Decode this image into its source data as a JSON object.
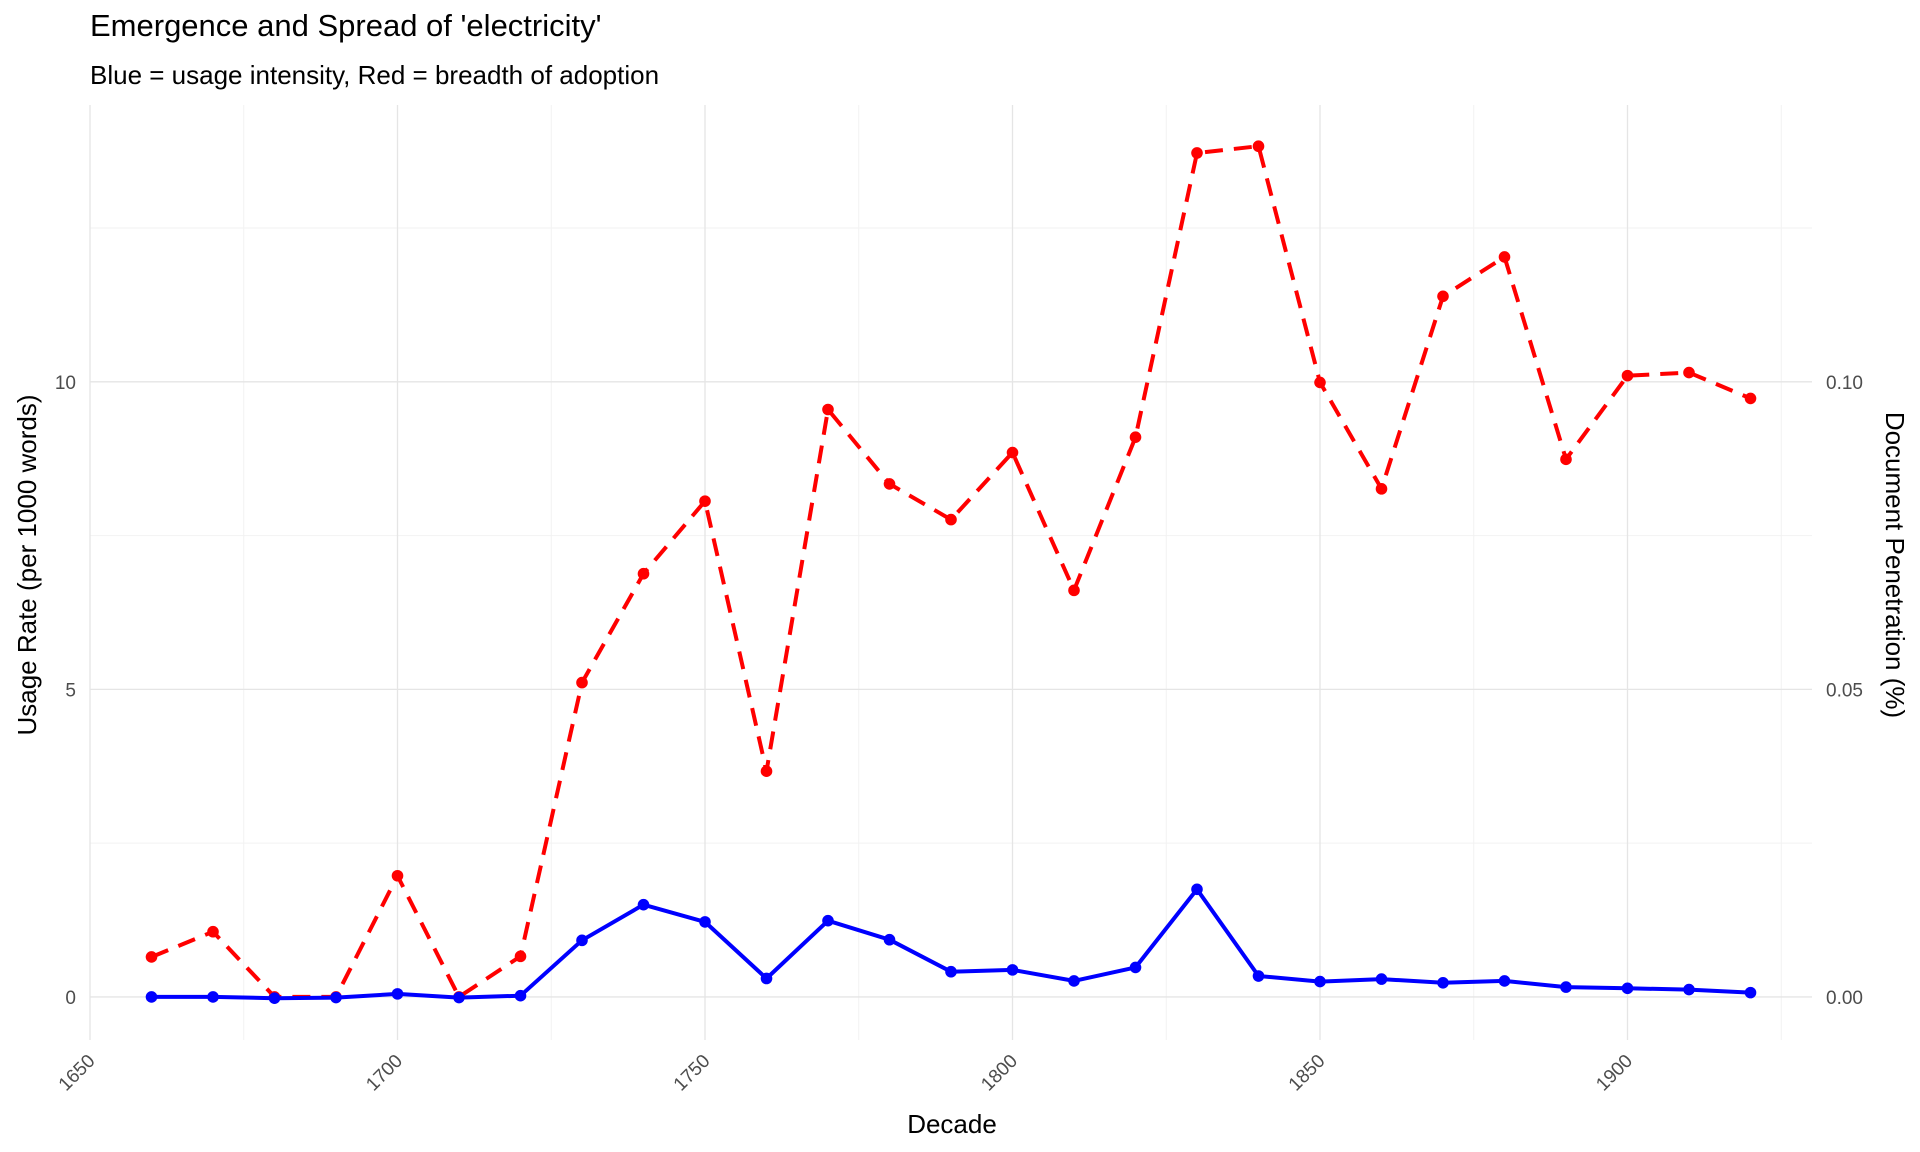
{
  "chart_data": {
    "type": "line",
    "title": "Emergence and Spread of 'electricity'",
    "subtitle": "Blue = usage intensity, Red = breadth of adoption",
    "xlabel": "Decade",
    "ylabel": "Usage Rate (per 1000 words)",
    "y2label": "Document Penetration (%)",
    "xlim": [
      1650,
      1930
    ],
    "ylim": [
      -0.7,
      14.5
    ],
    "x_ticks": [
      1650,
      1700,
      1750,
      1800,
      1850,
      1900
    ],
    "y_ticks": [
      0,
      5,
      10
    ],
    "y_tick_labels": [
      "0",
      "5",
      "10"
    ],
    "y2_ticks": [
      0,
      5,
      10
    ],
    "y2_tick_labels": [
      "0.00",
      "0.05",
      "0.10"
    ],
    "grid": true,
    "x": [
      1660,
      1670,
      1680,
      1690,
      1700,
      1710,
      1720,
      1730,
      1740,
      1750,
      1760,
      1770,
      1780,
      1790,
      1800,
      1810,
      1820,
      1830,
      1840,
      1850,
      1860,
      1870,
      1880,
      1890,
      1900,
      1910,
      1920
    ],
    "series": [
      {
        "axis": "left",
        "color": "#0000ff",
        "style": "solid",
        "values": [
          0.0,
          0.0,
          -0.02,
          -0.01,
          0.05,
          -0.01,
          0.02,
          0.92,
          1.5,
          1.22,
          0.3,
          1.24,
          0.93,
          0.41,
          0.44,
          0.26,
          0.48,
          1.75,
          0.34,
          0.25,
          0.29,
          0.23,
          0.26,
          0.16,
          0.14,
          0.12,
          0.07
        ]
      },
      {
        "axis": "right",
        "color": "#ff0000",
        "style": "dashed",
        "values": [
          0.0065,
          0.0106,
          0.0,
          0.0,
          0.0197,
          0.0,
          0.0066,
          0.0511,
          0.0688,
          0.0806,
          0.0367,
          0.0955,
          0.0834,
          0.0776,
          0.0885,
          0.0661,
          0.091,
          0.1372,
          0.1383,
          0.0999,
          0.0826,
          0.1139,
          0.1203,
          0.0874,
          0.101,
          0.1015,
          0.0973
        ]
      }
    ]
  }
}
